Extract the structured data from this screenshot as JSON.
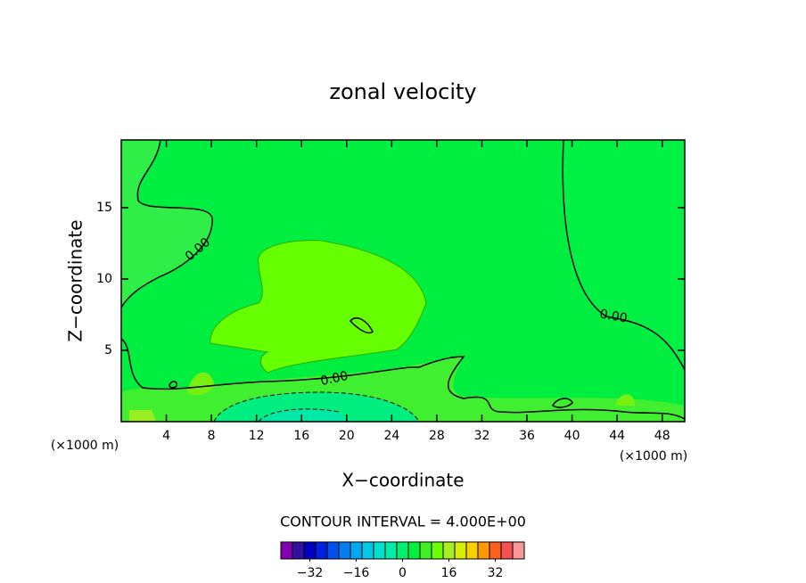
{
  "chart_data": {
    "type": "contour",
    "title": "zonal velocity",
    "x_label": "X−coordinate",
    "y_label": "Z−coordinate",
    "x_unit": "(×1000 m)",
    "y_unit": "(×1000 m)",
    "xlim": [
      0,
      50
    ],
    "ylim": [
      0,
      19.75
    ],
    "xticks": [
      4,
      8,
      12,
      16,
      20,
      24,
      28,
      32,
      36,
      40,
      44,
      48
    ],
    "yticks": [
      5,
      10,
      15
    ],
    "contour_labels": [
      "0.00",
      "0.00",
      "0.00"
    ],
    "contour_interval": "CONTOUR INTERVAL = 4.000E+00",
    "colorbar": {
      "levels": [
        -42,
        -38,
        -34,
        -30,
        -26,
        -22,
        -18,
        -14,
        -10,
        -6,
        -2,
        2,
        6,
        10,
        14,
        18,
        22,
        26,
        30,
        34,
        38,
        42
      ],
      "colors": [
        "#8000b0",
        "#3010a0",
        "#0000c0",
        "#0020e0",
        "#0050f0",
        "#0080f0",
        "#00a8f0",
        "#00c8e8",
        "#00e0d0",
        "#00eea8",
        "#00f070",
        "#00f040",
        "#40f020",
        "#70ff00",
        "#a8ee20",
        "#d8ee00",
        "#f8d000",
        "#ff9800",
        "#ff6020",
        "#f85050",
        "#f89898"
      ],
      "ticks": [
        {
          "value": -32,
          "label": "−32"
        },
        {
          "value": -16,
          "label": "−16"
        },
        0,
        16,
        32
      ]
    }
  }
}
